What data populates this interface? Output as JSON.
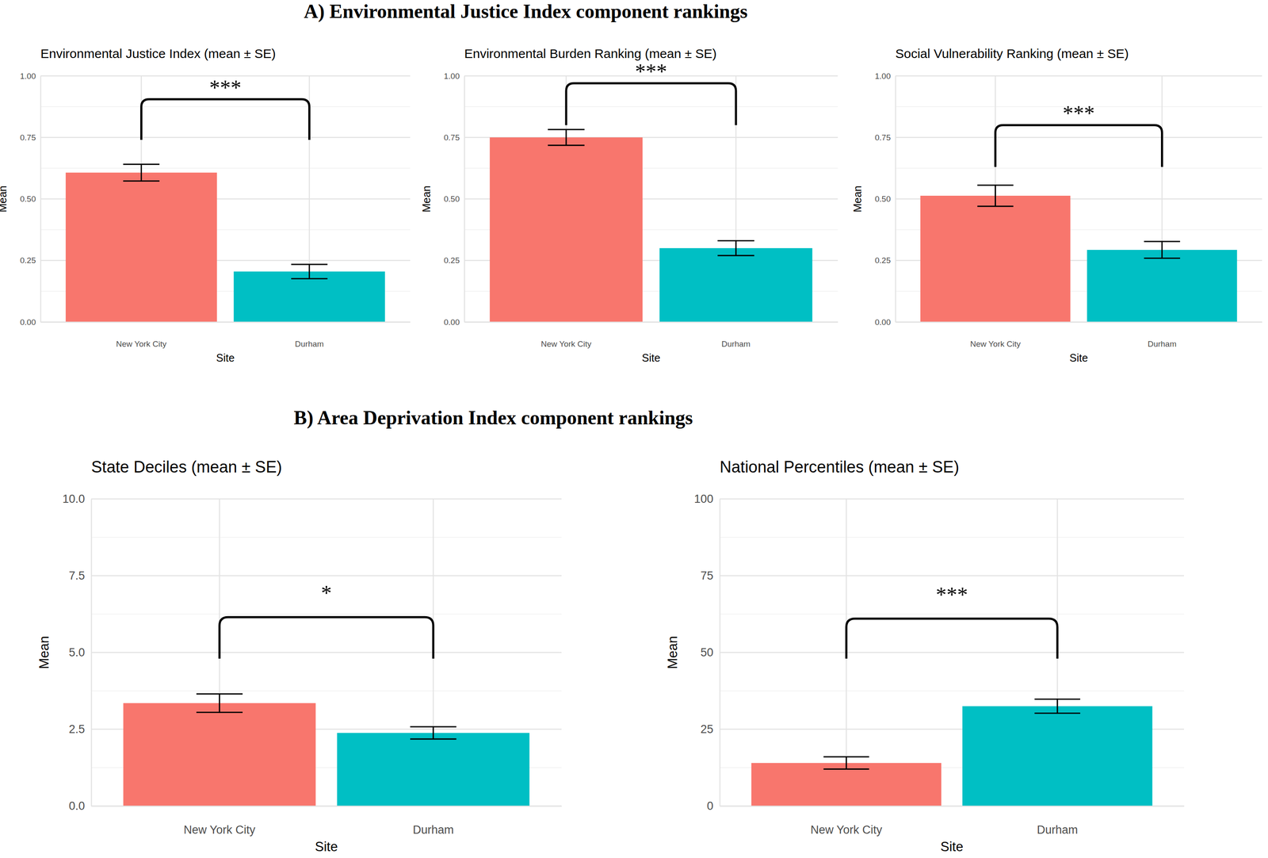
{
  "section_titles": [
    "A) Environmental Justice Index component rankings",
    "B) Area Deprivation Index component rankings"
  ],
  "chart_data": [
    {
      "type": "bar",
      "title": "Environmental Justice Index (mean ± SE)",
      "x_label": "Site",
      "y_label": "Mean",
      "categories": [
        "New York City",
        "Durham"
      ],
      "values": [
        0.607,
        0.205
      ],
      "errors": [
        0.034,
        0.029
      ],
      "colors": [
        "#F8766D",
        "#00BFC4"
      ],
      "ylim": [
        0,
        1
      ],
      "yticks": [
        {
          "value": 0,
          "label": "0.00"
        },
        0.25,
        {
          "value": 0.5,
          "label": "0.50"
        },
        0.75,
        {
          "value": 1,
          "label": "1.00"
        }
      ],
      "grid": true,
      "annotations": [
        {
          "text": "***",
          "y": 0.905,
          "y_end": 0.74
        }
      ]
    },
    {
      "type": "bar",
      "title": "Environmental Burden Ranking (mean ± SE)",
      "x_label": "Site",
      "y_label": "Mean",
      "categories": [
        "New York City",
        "Durham"
      ],
      "values": [
        0.75,
        0.3
      ],
      "errors": [
        0.032,
        0.03
      ],
      "colors": [
        "#F8766D",
        "#00BFC4"
      ],
      "ylim": [
        0,
        1
      ],
      "yticks": [
        {
          "value": 0,
          "label": "0.00"
        },
        0.25,
        {
          "value": 0.5,
          "label": "0.50"
        },
        0.75,
        {
          "value": 1,
          "label": "1.00"
        }
      ],
      "grid": true,
      "annotations": [
        {
          "text": "***",
          "y": 0.97,
          "y_end": 0.8
        }
      ]
    },
    {
      "type": "bar",
      "title": "Social Vulnerability Ranking (mean ± SE)",
      "x_label": "Site",
      "y_label": "Mean",
      "categories": [
        "New York City",
        "Durham"
      ],
      "values": [
        0.513,
        0.293
      ],
      "errors": [
        0.043,
        0.034
      ],
      "colors": [
        "#F8766D",
        "#00BFC4"
      ],
      "ylim": [
        0,
        1
      ],
      "yticks": [
        {
          "value": 0,
          "label": "0.00"
        },
        0.25,
        {
          "value": 0.5,
          "label": "0.50"
        },
        0.75,
        {
          "value": 1,
          "label": "1.00"
        }
      ],
      "grid": true,
      "annotations": [
        {
          "text": "***",
          "y": 0.8,
          "y_end": 0.63
        }
      ]
    },
    {
      "type": "bar",
      "title": "State Deciles (mean ± SE)",
      "x_label": "Site",
      "y_label": "Mean",
      "categories": [
        "New York City",
        "Durham"
      ],
      "values": [
        3.35,
        2.38
      ],
      "errors": [
        0.3,
        0.2
      ],
      "colors": [
        "#F8766D",
        "#00BFC4"
      ],
      "ylim": [
        0,
        10
      ],
      "yticks": [
        {
          "value": 0,
          "label": "0.0"
        },
        2.5,
        {
          "value": 5,
          "label": "5.0"
        },
        7.5,
        {
          "value": 10,
          "label": "10.0"
        }
      ],
      "grid": true,
      "annotations": [
        {
          "text": "*",
          "y": 6.15,
          "y_end": 4.8
        }
      ]
    },
    {
      "type": "bar",
      "title": "National Percentiles (mean ± SE)",
      "x_label": "Site",
      "y_label": "Mean",
      "categories": [
        "New York City",
        "Durham"
      ],
      "values": [
        14.0,
        32.5
      ],
      "errors": [
        2.0,
        2.3
      ],
      "colors": [
        "#F8766D",
        "#00BFC4"
      ],
      "ylim": [
        0,
        100
      ],
      "yticks": [
        0,
        25,
        50,
        75,
        100
      ],
      "grid": true,
      "annotations": [
        {
          "text": "***",
          "y": 61,
          "y_end": 48
        }
      ]
    }
  ]
}
